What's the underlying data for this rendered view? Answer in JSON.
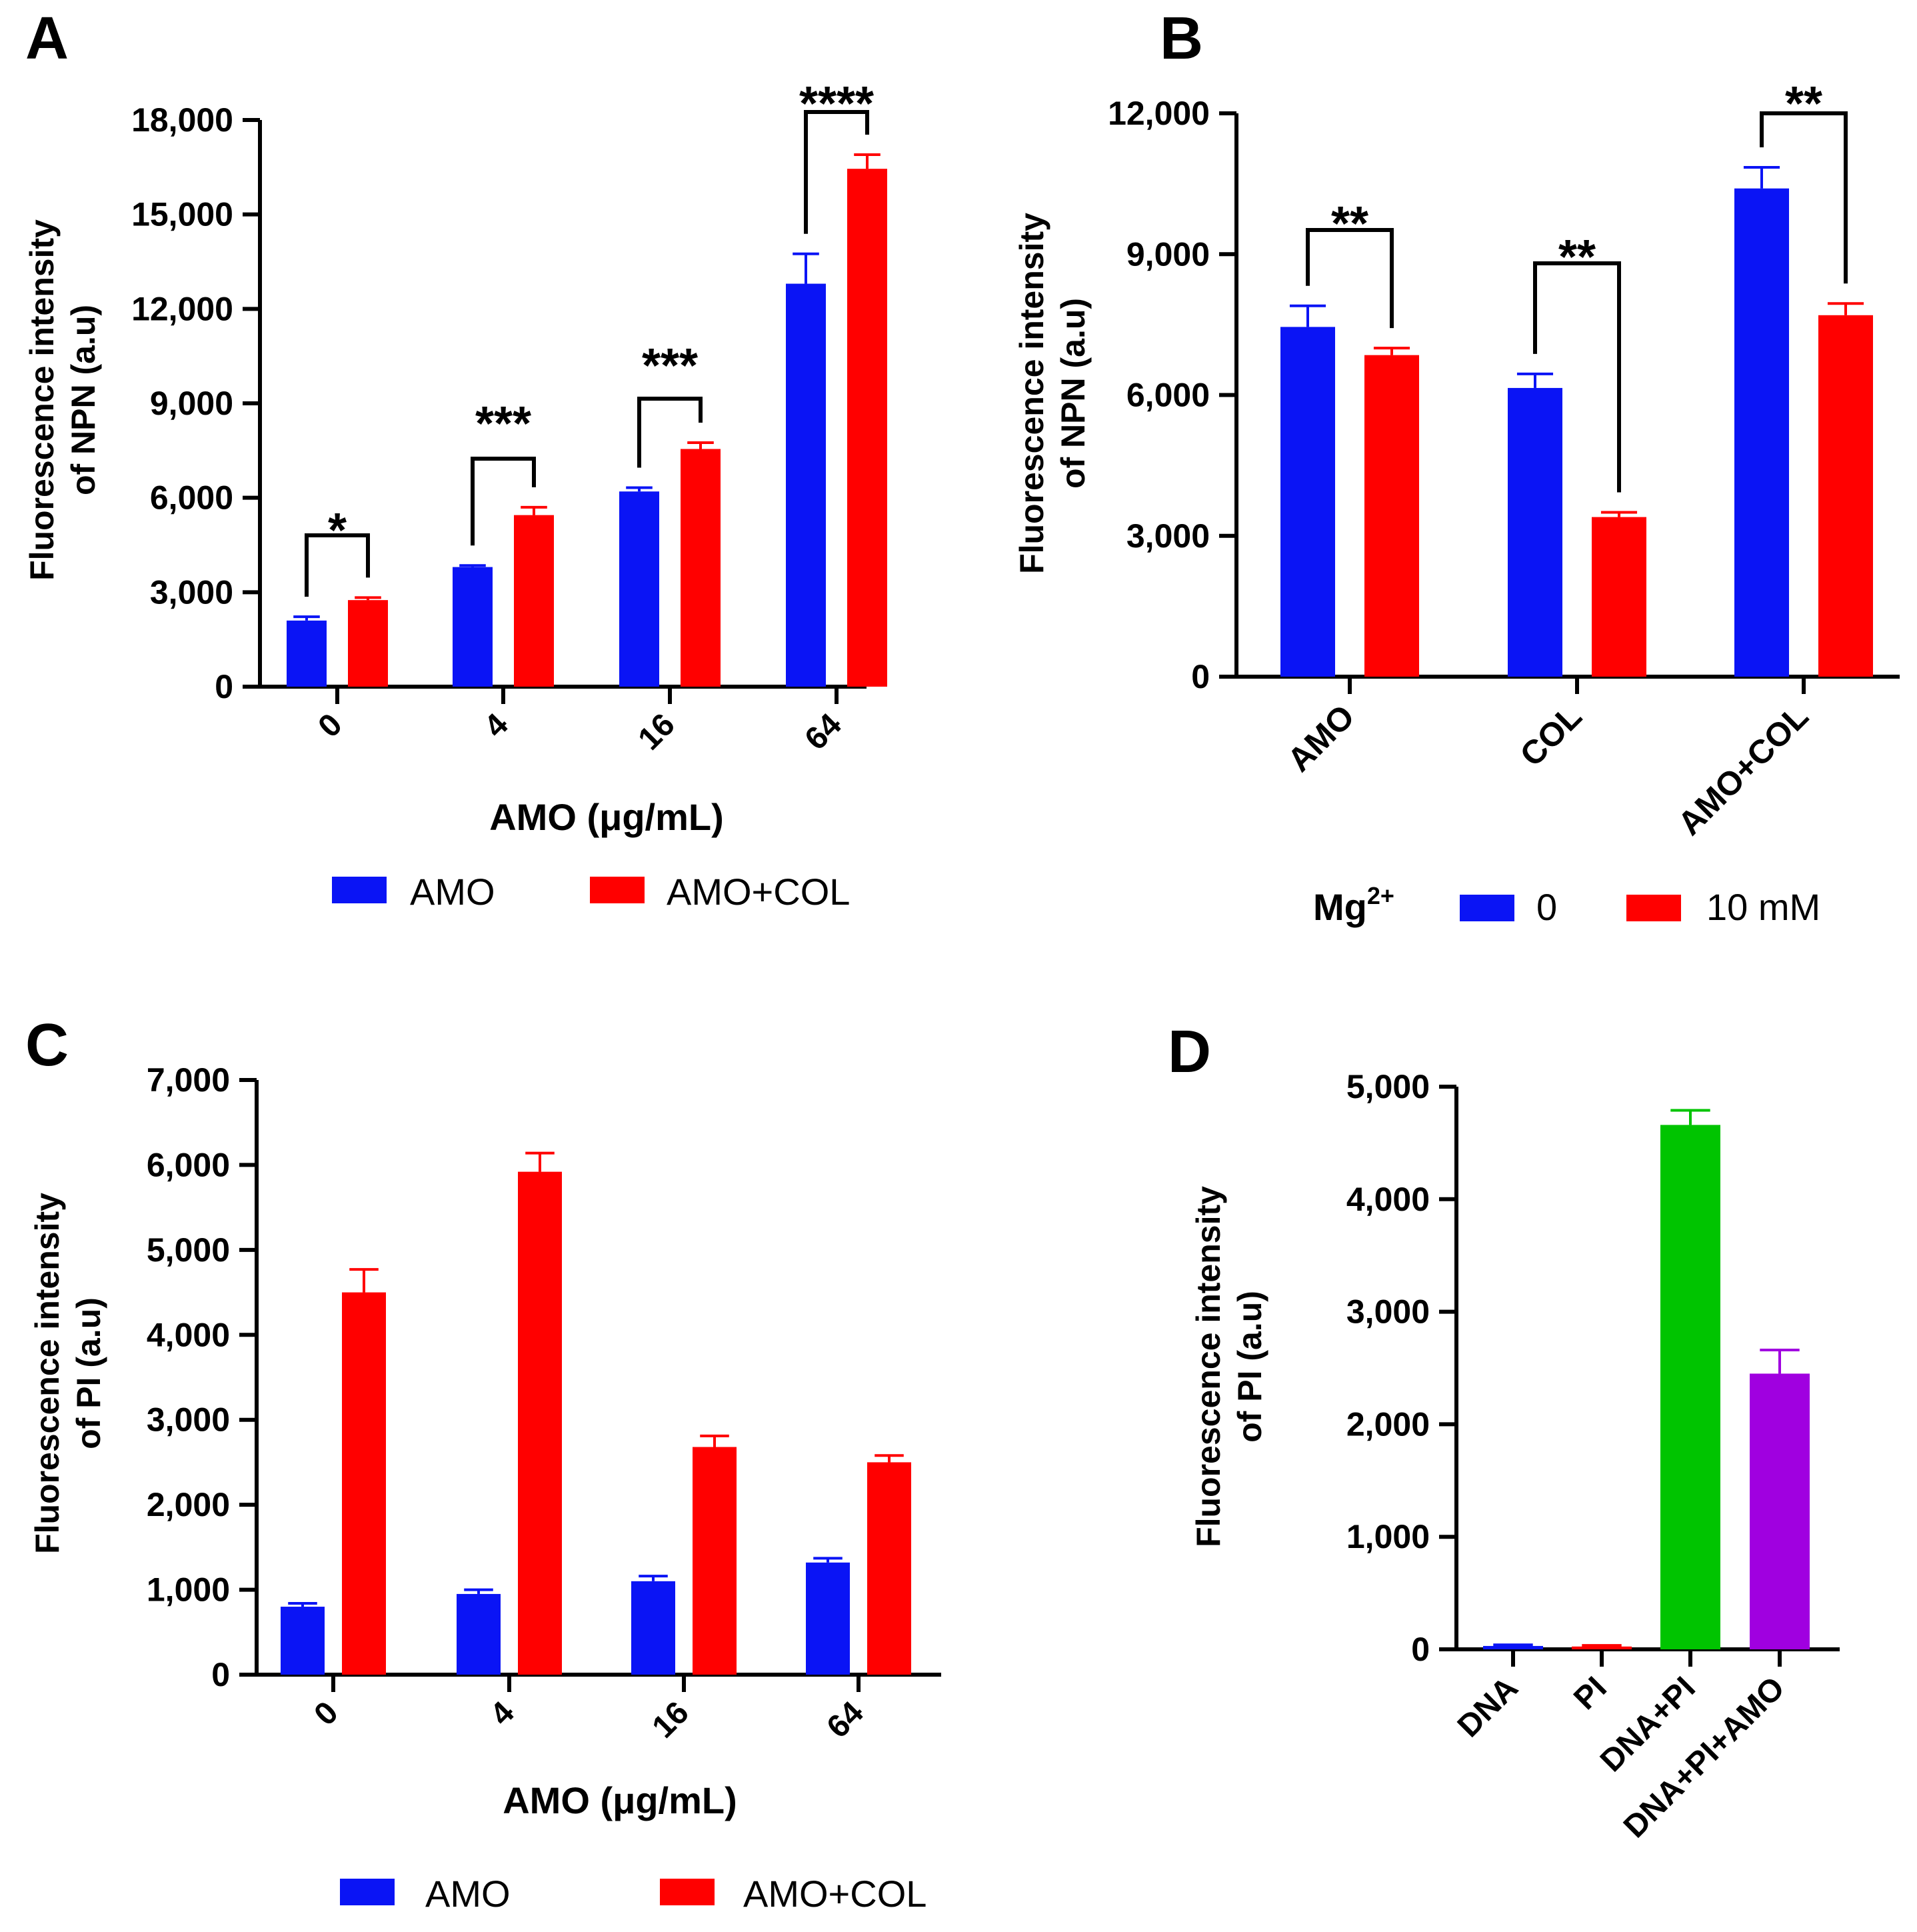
{
  "figure": {
    "colors": {
      "blue": "#0a14f5",
      "red": "#ff0000",
      "green": "#00c400",
      "purple": "#a000e0",
      "axis": "#000000"
    }
  },
  "chart_data": [
    {
      "panel": "A",
      "type": "bar",
      "ylabel": [
        "Fluorescence intensity",
        "of NPN (a.u)"
      ],
      "xlabel": "AMO (μg/mL)",
      "categories": [
        "0",
        "4",
        "16",
        "64"
      ],
      "ylim": [
        0,
        18000
      ],
      "yticks": [
        0,
        3000,
        6000,
        9000,
        12000,
        15000,
        18000
      ],
      "ytick_labels": [
        "0",
        "3,000",
        "6,000",
        "9,000",
        "12,000",
        "15,000",
        "18,000"
      ],
      "series": [
        {
          "name": "AMO",
          "color": "#0a14f5",
          "values": [
            2100,
            3800,
            6200,
            12800
          ],
          "errors": [
            120,
            50,
            120,
            950
          ]
        },
        {
          "name": "AMO+COL",
          "color": "#ff0000",
          "values": [
            2750,
            5450,
            7550,
            16450
          ],
          "errors": [
            80,
            250,
            200,
            450
          ]
        }
      ],
      "significance": [
        "*",
        "***",
        "***",
        "****"
      ],
      "legend": {
        "position": "bottom",
        "title": "",
        "entries": [
          "AMO",
          "AMO+COL"
        ]
      }
    },
    {
      "panel": "B",
      "type": "bar",
      "ylabel": [
        "Fluorescence intensity",
        "of NPN (a.u)"
      ],
      "xlabel": "",
      "categories": [
        "AMO",
        "COL",
        "AMO+COL"
      ],
      "ylim": [
        0,
        12000
      ],
      "yticks": [
        0,
        3000,
        6000,
        9000,
        12000
      ],
      "ytick_labels": [
        "0",
        "3,000",
        "6,000",
        "9,000",
        "12,000"
      ],
      "series": [
        {
          "name": "0",
          "color": "#0a14f5",
          "values": [
            7450,
            6150,
            10400
          ],
          "errors": [
            450,
            300,
            450
          ]
        },
        {
          "name": "10 mM",
          "color": "#ff0000",
          "values": [
            6850,
            3400,
            7700
          ],
          "errors": [
            150,
            100,
            250
          ]
        }
      ],
      "significance": [
        "**",
        "**",
        "**"
      ],
      "legend": {
        "position": "bottom",
        "title": "Mg",
        "title_sup": "2+",
        "entries": [
          "0",
          "10 mM"
        ]
      }
    },
    {
      "panel": "C",
      "type": "bar",
      "ylabel": [
        "Fluorescence intensity",
        "of PI (a.u)"
      ],
      "xlabel": "AMO (μg/mL)",
      "categories": [
        "0",
        "4",
        "16",
        "64"
      ],
      "ylim": [
        0,
        7000
      ],
      "yticks": [
        0,
        1000,
        2000,
        3000,
        4000,
        5000,
        6000,
        7000
      ],
      "ytick_labels": [
        "0",
        "1,000",
        "2,000",
        "3,000",
        "4,000",
        "5,000",
        "6,000",
        "7,000"
      ],
      "series": [
        {
          "name": "AMO",
          "color": "#0a14f5",
          "values": [
            800,
            950,
            1100,
            1320
          ],
          "errors": [
            40,
            50,
            60,
            50
          ]
        },
        {
          "name": "AMO+COL",
          "color": "#ff0000",
          "values": [
            4500,
            5920,
            2680,
            2500
          ],
          "errors": [
            270,
            220,
            130,
            80
          ]
        }
      ],
      "legend": {
        "position": "bottom",
        "title": "",
        "entries": [
          "AMO",
          "AMO+COL"
        ]
      }
    },
    {
      "panel": "D",
      "type": "bar",
      "ylabel": [
        "Fluorescence intensity",
        "of PI (a.u)"
      ],
      "xlabel": "",
      "categories": [
        "DNA",
        "PI",
        "DNA+PI",
        "DNA+PI+AMO"
      ],
      "ylim": [
        0,
        5000
      ],
      "yticks": [
        0,
        1000,
        2000,
        3000,
        4000,
        5000
      ],
      "ytick_labels": [
        "0",
        "1,000",
        "2,000",
        "3,000",
        "4,000",
        "5,000"
      ],
      "series": [
        {
          "name": "Fluorescence intensity of PI",
          "values": [
            30,
            25,
            4660,
            2450
          ],
          "errors": [
            10,
            10,
            130,
            210
          ],
          "colors": [
            "#0a14f5",
            "#ff0000",
            "#00c400",
            "#a000e0"
          ]
        }
      ]
    }
  ]
}
